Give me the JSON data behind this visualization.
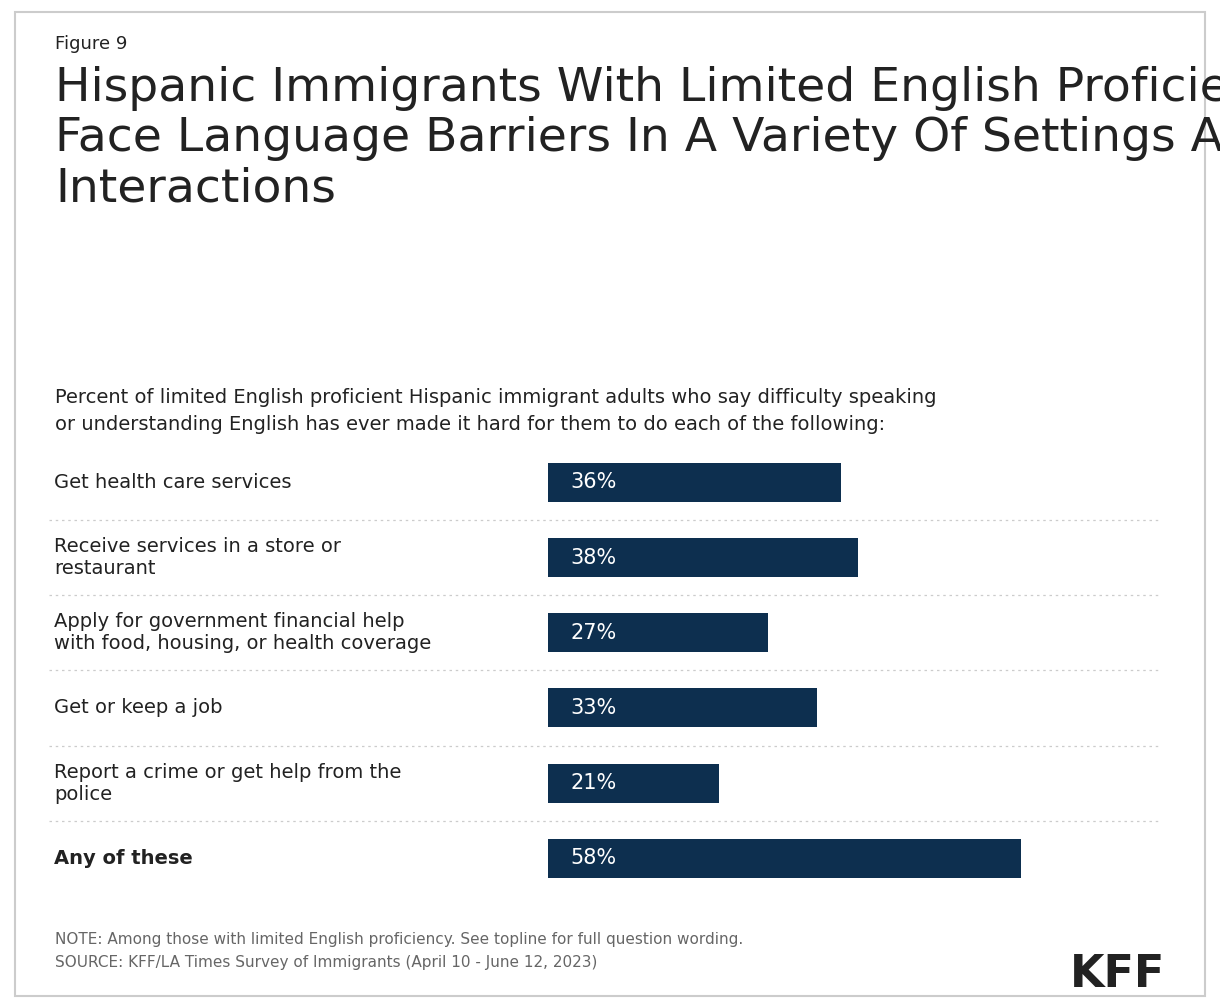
{
  "figure_label": "Figure 9",
  "title_line1": "Hispanic Immigrants With Limited English Proficiency",
  "title_line2": "Face Language Barriers In A Variety Of Settings And",
  "title_line3": "Interactions",
  "subtitle_line1": "Percent of limited English proficient Hispanic immigrant adults who say difficulty speaking",
  "subtitle_line2": "or understanding English has ever made it hard for them to do each of the following:",
  "categories": [
    "Get health care services",
    "Receive services in a store or\nrestaurant",
    "Apply for government financial help\nwith food, housing, or health coverage",
    "Get or keep a job",
    "Report a crime or get help from the\npolice",
    "Any of these"
  ],
  "values": [
    36,
    38,
    27,
    33,
    21,
    58
  ],
  "bold_flags": [
    false,
    false,
    false,
    false,
    false,
    true
  ],
  "bar_color": "#0d2f4f",
  "bar_height": 0.52,
  "note_line1": "NOTE: Among those with limited English proficiency. See topline for full question wording.",
  "note_line2": "SOURCE: KFF/LA Times Survey of Immigrants (April 10 - June 12, 2023)",
  "kff_label": "KFF",
  "background_color": "#ffffff",
  "text_color": "#222222",
  "note_color": "#666666",
  "xlim": [
    0,
    75
  ],
  "bar_label_color": "#ffffff",
  "bar_label_fontsize": 15,
  "category_fontsize": 14,
  "title_fontsize": 34,
  "subtitle_fontsize": 14,
  "figure_label_fontsize": 13,
  "separator_color": "#cccccc",
  "border_color": "#cccccc"
}
